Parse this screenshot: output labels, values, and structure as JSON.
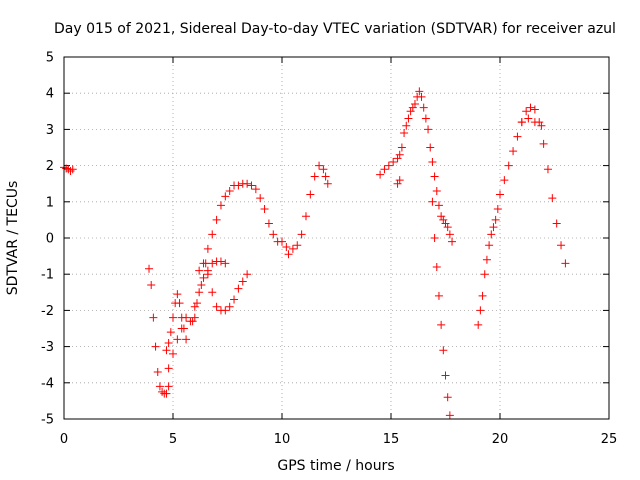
{
  "chart_data": {
    "type": "scatter",
    "title": "Day 015 of 2021, Sidereal Day-to-day VTEC variation (SDTVAR) for receiver azul",
    "xlabel": "GPS time / hours",
    "ylabel": "SDTVAR / TECUs",
    "xlim": [
      0,
      25
    ],
    "ylim": [
      -5,
      5
    ],
    "xticks": [
      "0",
      "5",
      "10",
      "15",
      "20",
      "25"
    ],
    "yticks": [
      "5",
      "4",
      "3",
      "2",
      "1",
      "0",
      "-1",
      "-2",
      "-3",
      "-4",
      "-5"
    ],
    "grid": true,
    "marker": "+",
    "color": "#ff0000",
    "series": [
      {
        "points": [
          [
            0.0,
            1.95
          ],
          [
            0.1,
            1.92
          ],
          [
            0.2,
            1.9
          ],
          [
            0.3,
            1.85
          ],
          [
            0.4,
            1.9
          ],
          [
            3.9,
            -0.85
          ],
          [
            4.0,
            -1.3
          ],
          [
            4.1,
            -2.2
          ],
          [
            4.2,
            -3.0
          ],
          [
            4.3,
            -3.7
          ],
          [
            4.4,
            -4.1
          ],
          [
            4.5,
            -4.25
          ],
          [
            4.6,
            -4.3
          ],
          [
            4.7,
            -4.3
          ],
          [
            4.8,
            -4.1
          ],
          [
            4.7,
            -3.1
          ],
          [
            4.8,
            -2.9
          ],
          [
            4.9,
            -2.6
          ],
          [
            5.0,
            -2.2
          ],
          [
            5.1,
            -1.8
          ],
          [
            5.2,
            -1.55
          ],
          [
            5.3,
            -1.8
          ],
          [
            5.4,
            -2.2
          ],
          [
            5.5,
            -2.5
          ],
          [
            5.6,
            -2.8
          ],
          [
            4.8,
            -3.6
          ],
          [
            5.0,
            -3.2
          ],
          [
            5.2,
            -2.8
          ],
          [
            5.4,
            -2.5
          ],
          [
            5.6,
            -2.2
          ],
          [
            5.8,
            -2.3
          ],
          [
            6.0,
            -2.2
          ],
          [
            5.9,
            -2.3
          ],
          [
            6.1,
            -1.8
          ],
          [
            6.3,
            -1.3
          ],
          [
            6.5,
            -0.7
          ],
          [
            6.6,
            -0.3
          ],
          [
            6.8,
            0.1
          ],
          [
            7.0,
            0.5
          ],
          [
            7.2,
            0.9
          ],
          [
            7.4,
            1.15
          ],
          [
            7.6,
            1.3
          ],
          [
            7.8,
            1.45
          ],
          [
            8.0,
            1.45
          ],
          [
            8.2,
            1.5
          ],
          [
            8.4,
            1.5
          ],
          [
            8.6,
            1.45
          ],
          [
            8.8,
            1.35
          ],
          [
            9.0,
            1.1
          ],
          [
            9.2,
            0.8
          ],
          [
            9.4,
            0.4
          ],
          [
            9.6,
            0.1
          ],
          [
            9.8,
            -0.1
          ],
          [
            10.0,
            -0.1
          ],
          [
            10.2,
            -0.25
          ],
          [
            10.3,
            -0.45
          ],
          [
            10.5,
            -0.3
          ],
          [
            10.7,
            -0.2
          ],
          [
            10.9,
            0.1
          ],
          [
            11.1,
            0.6
          ],
          [
            11.3,
            1.2
          ],
          [
            11.5,
            1.7
          ],
          [
            11.7,
            2.0
          ],
          [
            11.9,
            1.9
          ],
          [
            12.0,
            1.7
          ],
          [
            12.1,
            1.5
          ],
          [
            6.0,
            -1.9
          ],
          [
            6.2,
            -1.5
          ],
          [
            6.4,
            -1.1
          ],
          [
            6.6,
            -0.9
          ],
          [
            6.8,
            -0.7
          ],
          [
            7.0,
            -0.65
          ],
          [
            7.2,
            -0.65
          ],
          [
            7.4,
            -0.7
          ],
          [
            6.2,
            -0.9
          ],
          [
            6.4,
            -0.7
          ],
          [
            6.6,
            -1.0
          ],
          [
            6.8,
            -1.5
          ],
          [
            7.0,
            -1.9
          ],
          [
            7.2,
            -2.0
          ],
          [
            7.4,
            -2.0
          ],
          [
            7.6,
            -1.9
          ],
          [
            7.8,
            -1.7
          ],
          [
            8.0,
            -1.4
          ],
          [
            8.2,
            -1.2
          ],
          [
            8.4,
            -1.0
          ],
          [
            14.5,
            1.75
          ],
          [
            14.7,
            1.9
          ],
          [
            14.9,
            2.0
          ],
          [
            15.1,
            2.1
          ],
          [
            15.3,
            2.2
          ],
          [
            15.4,
            2.3
          ],
          [
            15.5,
            2.5
          ],
          [
            15.6,
            2.9
          ],
          [
            15.7,
            3.1
          ],
          [
            15.8,
            3.3
          ],
          [
            15.9,
            3.5
          ],
          [
            16.0,
            3.6
          ],
          [
            16.1,
            3.7
          ],
          [
            16.2,
            3.9
          ],
          [
            16.3,
            4.05
          ],
          [
            16.4,
            3.9
          ],
          [
            16.5,
            3.6
          ],
          [
            16.6,
            3.3
          ],
          [
            16.7,
            3.0
          ],
          [
            16.8,
            2.5
          ],
          [
            16.9,
            2.1
          ],
          [
            17.0,
            1.7
          ],
          [
            17.1,
            1.3
          ],
          [
            17.2,
            0.9
          ],
          [
            17.3,
            0.6
          ],
          [
            17.4,
            0.5
          ],
          [
            17.5,
            0.4
          ],
          [
            17.6,
            0.3
          ],
          [
            17.7,
            0.1
          ],
          [
            17.8,
            -0.1
          ],
          [
            15.3,
            1.5
          ],
          [
            15.4,
            1.6
          ],
          [
            16.9,
            1.0
          ],
          [
            17.0,
            0.0
          ],
          [
            17.1,
            -0.8
          ],
          [
            17.2,
            -1.6
          ],
          [
            17.3,
            -2.4
          ],
          [
            17.4,
            -3.1
          ],
          [
            17.5,
            -3.8
          ],
          [
            17.6,
            -4.4
          ],
          [
            17.7,
            -4.9
          ],
          [
            19.0,
            -2.4
          ],
          [
            19.1,
            -2.0
          ],
          [
            19.2,
            -1.6
          ],
          [
            19.3,
            -1.0
          ],
          [
            19.4,
            -0.6
          ],
          [
            19.5,
            -0.2
          ],
          [
            19.6,
            0.1
          ],
          [
            19.7,
            0.3
          ],
          [
            19.8,
            0.5
          ],
          [
            19.9,
            0.8
          ],
          [
            20.0,
            1.2
          ],
          [
            20.2,
            1.6
          ],
          [
            20.4,
            2.0
          ],
          [
            20.6,
            2.4
          ],
          [
            20.8,
            2.8
          ],
          [
            21.0,
            3.2
          ],
          [
            21.2,
            3.5
          ],
          [
            21.4,
            3.6
          ],
          [
            21.6,
            3.55
          ],
          [
            21.8,
            3.2
          ],
          [
            22.0,
            2.6
          ],
          [
            22.2,
            1.9
          ],
          [
            22.4,
            1.1
          ],
          [
            22.6,
            0.4
          ],
          [
            22.8,
            -0.2
          ],
          [
            23.0,
            -0.7
          ],
          [
            21.0,
            3.2
          ],
          [
            21.3,
            3.3
          ],
          [
            21.6,
            3.2
          ],
          [
            21.9,
            3.1
          ]
        ]
      }
    ]
  }
}
